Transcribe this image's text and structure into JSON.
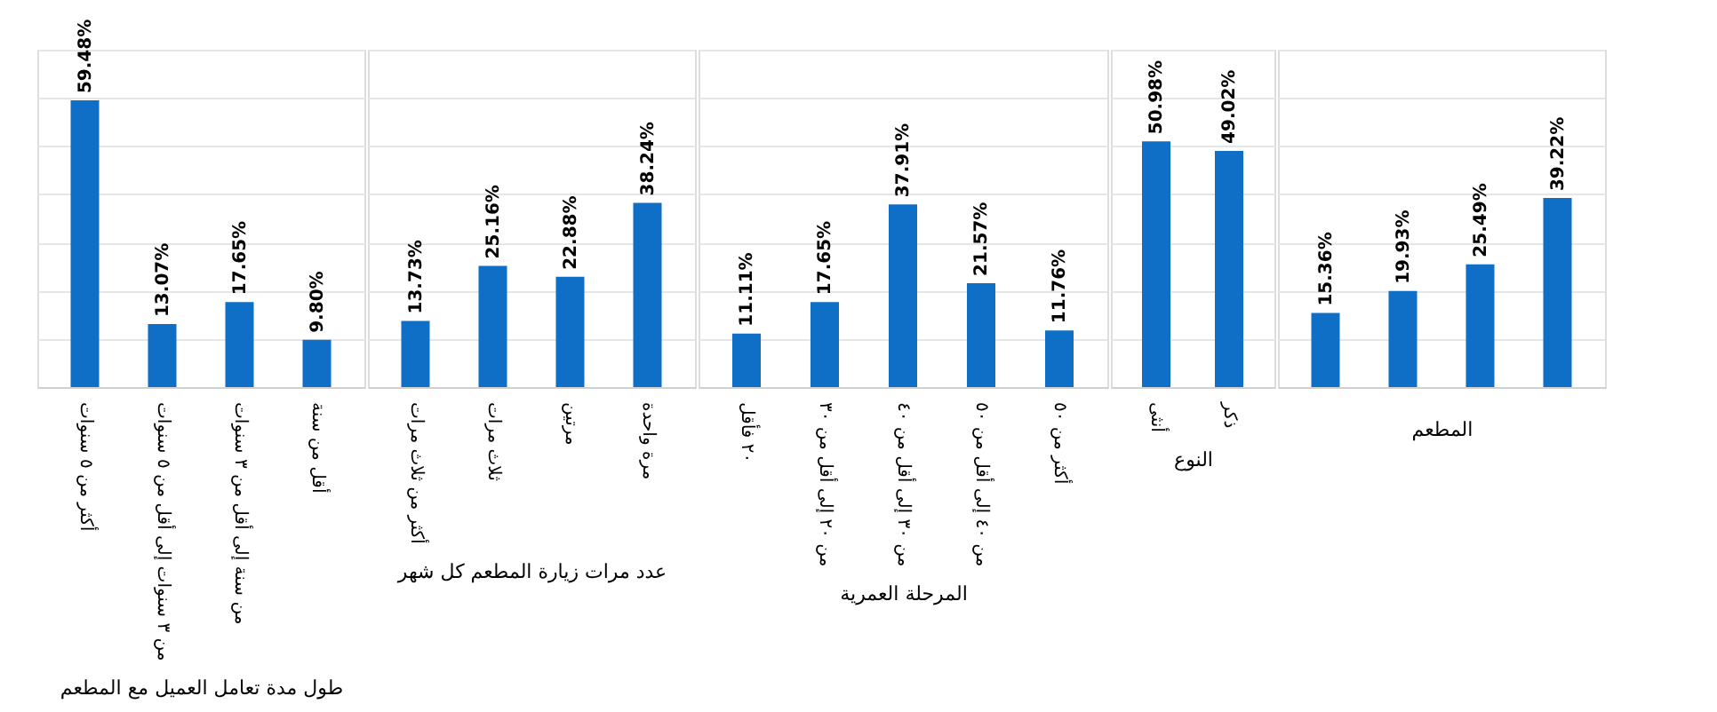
{
  "chart_data": [
    {
      "type": "bar",
      "color": "#0f6fc6",
      "xlabel": "طول مدة تعامل العميل مع المطعم",
      "categories": [
        "أكثر من ٥ سنوات",
        "من ٣ سنوات إلى أقل من ٥ سنوات",
        "من سنة إلى أقل من ٣ سنوات",
        "أقل من سنة"
      ],
      "values": [
        59.48,
        13.07,
        17.65,
        9.8
      ],
      "value_labels": [
        "59.48%",
        "13.07%",
        "17.65%",
        "9.80%"
      ],
      "ylim": [
        0,
        70
      ],
      "grid": "y",
      "tick_labels": "x"
    },
    {
      "type": "bar",
      "color": "#0f6fc6",
      "xlabel": "عدد مرات زيارة المطعم كل شهر",
      "categories": [
        "أكثر من ثلاث مرات",
        "ثلاث مرات",
        "مرتين",
        "مرة واحدة"
      ],
      "values": [
        13.73,
        25.16,
        22.88,
        38.24
      ],
      "value_labels": [
        "13.73%",
        "25.16%",
        "22.88%",
        "38.24%"
      ],
      "ylim": [
        0,
        70
      ],
      "grid": "y",
      "tick_labels": "x"
    },
    {
      "type": "bar",
      "color": "#0f6fc6",
      "xlabel": "المرحلة العمرية",
      "categories": [
        "٢٠ فأقل",
        "من ٢٠ إلى أقل من ٣٠",
        "من ٣٠ إلى أقل من ٤٠",
        "من ٤٠ إلى أقل من ٥٠",
        "أكثر من ٥٠"
      ],
      "values": [
        11.11,
        17.65,
        37.91,
        21.57,
        11.76
      ],
      "value_labels": [
        "11.11%",
        "17.65%",
        "37.91%",
        "21.57%",
        "11.76%"
      ],
      "ylim": [
        0,
        70
      ],
      "grid": "y",
      "tick_labels": "x"
    },
    {
      "type": "bar",
      "color": "#0f6fc6",
      "xlabel": "النوع",
      "categories": [
        "أنثى",
        "ذكر"
      ],
      "values": [
        50.98,
        49.02
      ],
      "value_labels": [
        "50.98%",
        "49.02%"
      ],
      "ylim": [
        0,
        70
      ],
      "grid": "y",
      "tick_labels": "x"
    },
    {
      "type": "bar",
      "color": "#0f6fc6",
      "xlabel": "المطعم",
      "categories": [
        null,
        null,
        null,
        null
      ],
      "values": [
        15.36,
        19.93,
        25.49,
        39.22
      ],
      "value_labels": [
        "15.36%",
        "19.93%",
        "25.49%",
        "39.22%"
      ],
      "ylim": [
        0,
        70
      ],
      "grid": "y",
      "tick_labels": "x"
    }
  ]
}
